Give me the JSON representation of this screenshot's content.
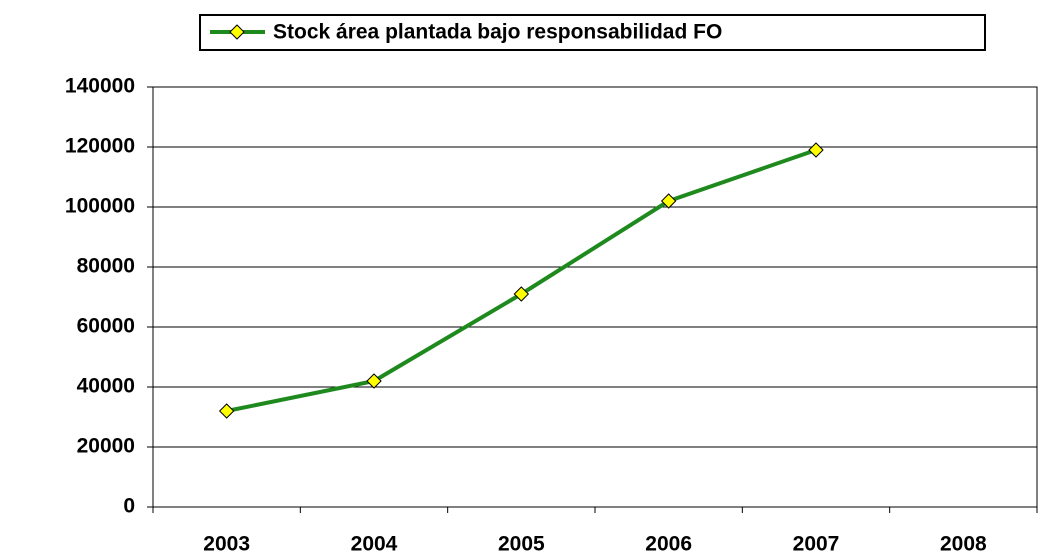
{
  "chart_data": {
    "type": "line",
    "categories": [
      "2003",
      "2004",
      "2005",
      "2006",
      "2007",
      "2008"
    ],
    "series": [
      {
        "name": "Stock área plantada bajo responsabilidad FO",
        "color": "#1e8a1e",
        "marker_color": "#ffff00",
        "values": [
          32000,
          42000,
          71000,
          102000,
          119000,
          null
        ]
      }
    ],
    "ylim": [
      0,
      140000
    ],
    "yticks": [
      0,
      20000,
      40000,
      60000,
      80000,
      100000,
      120000,
      140000
    ],
    "grid": true,
    "legend": "top"
  }
}
